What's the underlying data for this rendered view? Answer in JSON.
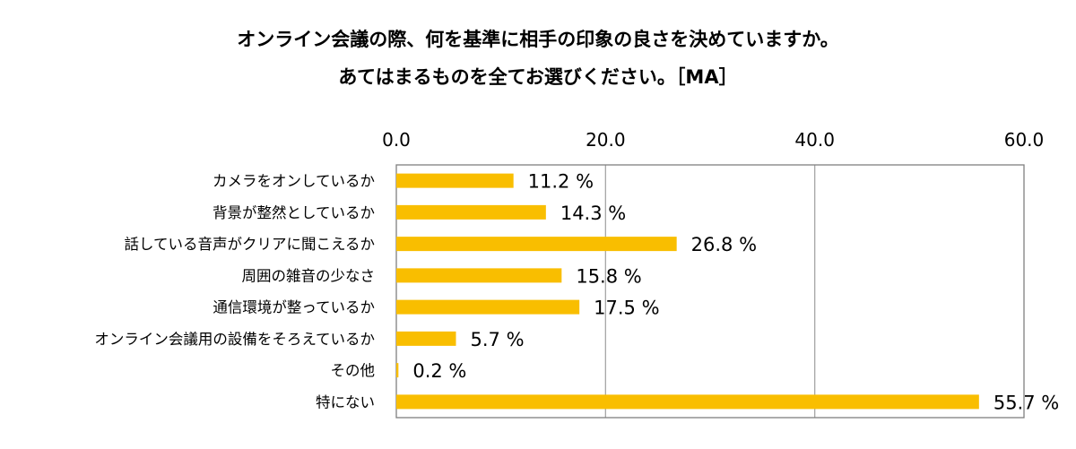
{
  "title_line1": "オンライン会議の際、何を基準に相手の印象の良さを決めていますか。",
  "title_line2": "あてはまるものを全てお選びください。［MA］",
  "chart_data": {
    "type": "bar",
    "orientation": "horizontal",
    "title": "オンライン会議の際、何を基準に相手の印象の良さを決めていますか。あてはまるものを全てお選びください。［MA］",
    "categories": [
      "カメラをオンしているか",
      "背景が整然としているか",
      "話している音声がクリアに聞こえるか",
      "周囲の雑音の少なさ",
      "通信環境が整っているか",
      "オンライン会議用の設備をそろえているか",
      "その他",
      "特にない"
    ],
    "values": [
      11.2,
      14.3,
      26.8,
      15.8,
      17.5,
      5.7,
      0.2,
      55.7
    ],
    "value_labels": [
      "11.2 %",
      "14.3 %",
      "26.8 %",
      "15.8 %",
      "17.5 %",
      "5.7 %",
      "0.2 %",
      "55.7 %"
    ],
    "xlim": [
      0,
      60
    ],
    "xticks": [
      "0.0",
      "20.0",
      "40.0",
      "60.0"
    ],
    "xaxis_position": "top",
    "grid": true,
    "bar_color": "#F9BE00",
    "grid_color": "#A6A6A6"
  }
}
